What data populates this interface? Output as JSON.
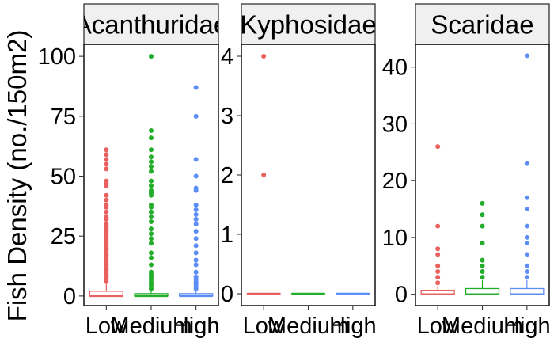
{
  "chart_data": {
    "type": "boxplot",
    "ylabel": "Fish Density (no./150m2)",
    "xlabel": "",
    "categories": [
      "Low",
      "Medium",
      "High"
    ],
    "colors": {
      "Low": "#e8615f",
      "Medium": "#22ad2a",
      "High": "#5d8ef7"
    },
    "grid": false,
    "legend": "none",
    "facet_order": [
      "Acanthuridae",
      "Kyphosidae",
      "Scaridae"
    ],
    "panels": [
      {
        "facet": "Acanthuridae",
        "ylim": [
          -4,
          105
        ],
        "yticks": [
          0,
          25,
          50,
          75,
          100
        ],
        "boxes": [
          {
            "category": "Low",
            "min": 0,
            "q1": 0,
            "median": 0,
            "q3": 2,
            "max": 5,
            "outliers": [
              61,
              59,
              57,
              55,
              53,
              48,
              47,
              46,
              42,
              40,
              38,
              37,
              35,
              33,
              32,
              30,
              29,
              28,
              27,
              26,
              25,
              24,
              23,
              22,
              21,
              20,
              19,
              18,
              17,
              16,
              15,
              14,
              13,
              12,
              11,
              10,
              9,
              8,
              7,
              6
            ]
          },
          {
            "category": "Medium",
            "min": 0,
            "q1": 0,
            "median": 0,
            "q3": 1,
            "max": 2.5,
            "outliers": [
              100,
              69,
              66,
              61,
              58,
              56,
              54,
              52,
              48,
              46,
              44,
              43,
              42,
              38,
              37,
              35,
              33,
              31,
              28,
              26,
              24,
              22,
              18,
              16,
              13,
              10,
              9,
              8,
              7,
              6,
              5,
              4,
              3
            ]
          },
          {
            "category": "High",
            "min": 0,
            "q1": 0,
            "median": 0,
            "q3": 1,
            "max": 2.5,
            "outliers": [
              87,
              75,
              57,
              50,
              45,
              44,
              38,
              36,
              34,
              32,
              30,
              27,
              24,
              21,
              18,
              15,
              13,
              10,
              8,
              7,
              6,
              5,
              4,
              3
            ]
          }
        ]
      },
      {
        "facet": "Kyphosidae",
        "ylim": [
          -0.2,
          4.2
        ],
        "yticks": [
          0,
          1,
          2,
          3,
          4
        ],
        "boxes": [
          {
            "category": "Low",
            "min": 0,
            "q1": 0,
            "median": 0,
            "q3": 0,
            "max": 0,
            "outliers": [
              4,
              2
            ]
          },
          {
            "category": "Medium",
            "min": 0,
            "q1": 0,
            "median": 0,
            "q3": 0,
            "max": 0,
            "outliers": []
          },
          {
            "category": "High",
            "min": 0,
            "q1": 0,
            "median": 0,
            "q3": 0,
            "max": 0,
            "outliers": []
          }
        ]
      },
      {
        "facet": "Scaridae",
        "ylim": [
          -2,
          44
        ],
        "yticks": [
          0,
          10,
          20,
          30,
          40
        ],
        "boxes": [
          {
            "category": "Low",
            "min": 0,
            "q1": 0,
            "median": 0,
            "q3": 0.7,
            "max": 1.5,
            "outliers": [
              26,
              12,
              8,
              7,
              5,
              4,
              3,
              2
            ]
          },
          {
            "category": "Medium",
            "min": 0,
            "q1": 0,
            "median": 0,
            "q3": 1,
            "max": 2.5,
            "outliers": [
              16,
              14,
              12,
              9,
              6,
              5,
              4,
              3
            ]
          },
          {
            "category": "High",
            "min": 0,
            "q1": 0,
            "median": 0,
            "q3": 1,
            "max": 2.5,
            "outliers": [
              42,
              23,
              17,
              15,
              12,
              10,
              9,
              7,
              5,
              4,
              3
            ]
          }
        ]
      }
    ]
  }
}
